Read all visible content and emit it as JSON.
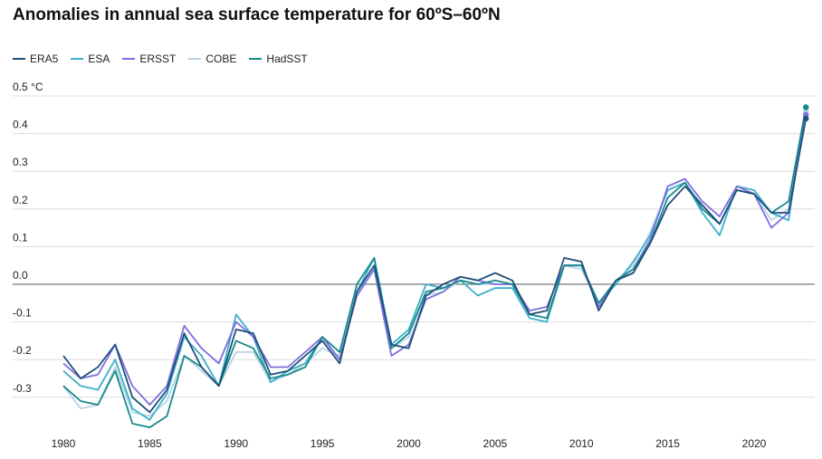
{
  "chart_data": {
    "type": "line",
    "title": "Anomalies in annual sea surface temperature for 60ºS–60ºN",
    "ylabel_unit": "0.5 °C",
    "ylim": [
      -0.38,
      0.5
    ],
    "xlim": [
      1979,
      2024
    ],
    "y_ticks": [
      {
        "value": 0.5,
        "label": "0.5 °C"
      },
      {
        "value": 0.4,
        "label": "0.4"
      },
      {
        "value": 0.3,
        "label": "0.3"
      },
      {
        "value": 0.2,
        "label": "0.2"
      },
      {
        "value": 0.1,
        "label": "0.1"
      },
      {
        "value": 0.0,
        "label": "0.0"
      },
      {
        "value": -0.1,
        "label": "-0.1"
      },
      {
        "value": -0.2,
        "label": "-0.2"
      },
      {
        "value": -0.3,
        "label": "-0.3"
      }
    ],
    "x_ticks": [
      {
        "value": 1980,
        "label": "1980"
      },
      {
        "value": 1985,
        "label": "1985"
      },
      {
        "value": 1990,
        "label": "1990"
      },
      {
        "value": 1995,
        "label": "1995"
      },
      {
        "value": 2000,
        "label": "2000"
      },
      {
        "value": 2005,
        "label": "2005"
      },
      {
        "value": 2010,
        "label": "2010"
      },
      {
        "value": 2015,
        "label": "2015"
      },
      {
        "value": 2020,
        "label": "2020"
      }
    ],
    "x": [
      1980,
      1981,
      1982,
      1983,
      1984,
      1985,
      1986,
      1987,
      1988,
      1989,
      1990,
      1991,
      1992,
      1993,
      1994,
      1995,
      1996,
      1997,
      1998,
      1999,
      2000,
      2001,
      2002,
      2003,
      2004,
      2005,
      2006,
      2007,
      2008,
      2009,
      2010,
      2011,
      2012,
      2013,
      2014,
      2015,
      2016,
      2017,
      2018,
      2019,
      2020,
      2021,
      2022,
      2023
    ],
    "series": [
      {
        "name": "ERA5",
        "color": "#1f4e79",
        "values": [
          -0.19,
          -0.25,
          -0.22,
          -0.16,
          -0.3,
          -0.34,
          -0.28,
          -0.13,
          -0.22,
          -0.27,
          -0.12,
          -0.13,
          -0.24,
          -0.23,
          -0.19,
          -0.15,
          -0.21,
          -0.02,
          0.05,
          -0.16,
          -0.17,
          -0.03,
          0.0,
          0.02,
          0.01,
          0.03,
          0.01,
          -0.08,
          -0.07,
          0.07,
          0.06,
          -0.07,
          0.01,
          0.03,
          0.11,
          0.21,
          0.26,
          0.21,
          0.16,
          0.25,
          0.24,
          0.19,
          0.19,
          0.44
        ]
      },
      {
        "name": "ESA",
        "color": "#3bb0c9",
        "values": [
          -0.23,
          -0.27,
          -0.28,
          -0.2,
          -0.33,
          -0.36,
          -0.29,
          -0.14,
          -0.19,
          -0.27,
          -0.08,
          -0.14,
          -0.26,
          -0.23,
          -0.21,
          -0.14,
          -0.2,
          -0.02,
          0.07,
          -0.16,
          -0.12,
          0.0,
          -0.01,
          0.01,
          -0.03,
          -0.01,
          -0.01,
          -0.09,
          -0.1,
          0.05,
          0.05,
          -0.05,
          0.0,
          0.06,
          0.13,
          0.25,
          0.27,
          0.19,
          0.13,
          0.26,
          0.25,
          0.19,
          0.17,
          0.47
        ]
      },
      {
        "name": "ERSST",
        "color": "#7b6fe0",
        "values": [
          -0.21,
          -0.25,
          -0.24,
          -0.16,
          -0.27,
          -0.32,
          -0.27,
          -0.11,
          -0.17,
          -0.21,
          -0.1,
          -0.14,
          -0.22,
          -0.22,
          -0.18,
          -0.14,
          -0.2,
          -0.03,
          0.04,
          -0.19,
          -0.16,
          -0.04,
          -0.02,
          0.02,
          0.01,
          0.0,
          0.0,
          -0.07,
          -0.06,
          0.05,
          0.05,
          -0.06,
          0.01,
          0.04,
          0.12,
          0.26,
          0.28,
          0.22,
          0.18,
          0.26,
          0.24,
          0.15,
          0.19,
          0.45
        ]
      },
      {
        "name": "COBE",
        "color": "#b9d3e8",
        "values": [
          -0.27,
          -0.33,
          -0.32,
          -0.22,
          -0.34,
          -0.35,
          -0.31,
          -0.19,
          -0.23,
          -0.27,
          -0.18,
          -0.18,
          -0.26,
          -0.24,
          -0.21,
          -0.17,
          -0.19,
          -0.03,
          0.04,
          -0.17,
          -0.14,
          -0.03,
          -0.02,
          0.01,
          0.0,
          0.0,
          0.0,
          -0.08,
          -0.09,
          0.05,
          0.04,
          -0.05,
          0.01,
          0.05,
          0.14,
          0.25,
          0.27,
          0.21,
          0.16,
          0.26,
          0.24,
          0.17,
          0.2,
          0.46
        ]
      },
      {
        "name": "HadSST",
        "color": "#168a8a",
        "values": [
          -0.27,
          -0.31,
          -0.32,
          -0.23,
          -0.37,
          -0.38,
          -0.35,
          -0.19,
          -0.22,
          -0.27,
          -0.15,
          -0.17,
          -0.25,
          -0.24,
          -0.22,
          -0.14,
          -0.18,
          0.0,
          0.07,
          -0.17,
          -0.13,
          -0.02,
          -0.01,
          0.01,
          0.0,
          0.01,
          0.0,
          -0.08,
          -0.09,
          0.05,
          0.05,
          -0.05,
          0.01,
          0.04,
          0.11,
          0.23,
          0.27,
          0.2,
          0.16,
          0.25,
          0.24,
          0.19,
          0.22,
          0.47
        ]
      }
    ]
  }
}
